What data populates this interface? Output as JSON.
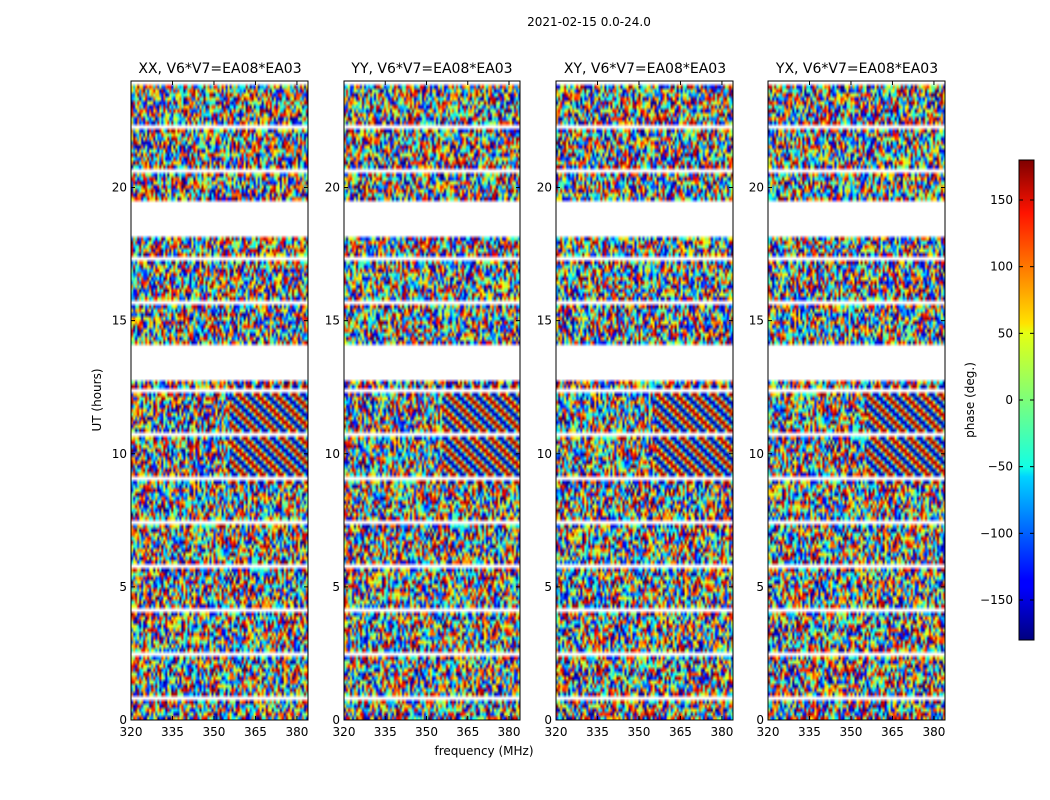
{
  "chart_data": {
    "type": "heatmap",
    "suptitle": "2021-02-15 0.0-24.0",
    "xlabel": "frequency (MHz)",
    "ylabel": "UT (hours)",
    "xlim": [
      320,
      384
    ],
    "ylim": [
      0,
      24
    ],
    "xticks": [
      320,
      335,
      350,
      365,
      380
    ],
    "yticks": [
      0,
      5,
      10,
      15,
      20
    ],
    "panels": [
      {
        "title": "XX, V6*V7=EA08*EA03"
      },
      {
        "title": "YY, V6*V7=EA08*EA03"
      },
      {
        "title": "XY, V6*V7=EA08*EA03"
      },
      {
        "title": "YX, V6*V7=EA08*EA03"
      }
    ],
    "flagged_gaps_hours": [
      [
        18.1,
        19.5
      ],
      [
        12.8,
        14.0
      ]
    ],
    "colorbar": {
      "label": "phase (deg.)",
      "range": [
        -180,
        180
      ],
      "ticks": [
        150,
        100,
        50,
        0,
        -50,
        -100,
        -150
      ],
      "tick_labels": [
        "150",
        "100",
        "50",
        "0",
        "−50",
        "−100",
        "−150"
      ],
      "colormap": "jet"
    }
  }
}
